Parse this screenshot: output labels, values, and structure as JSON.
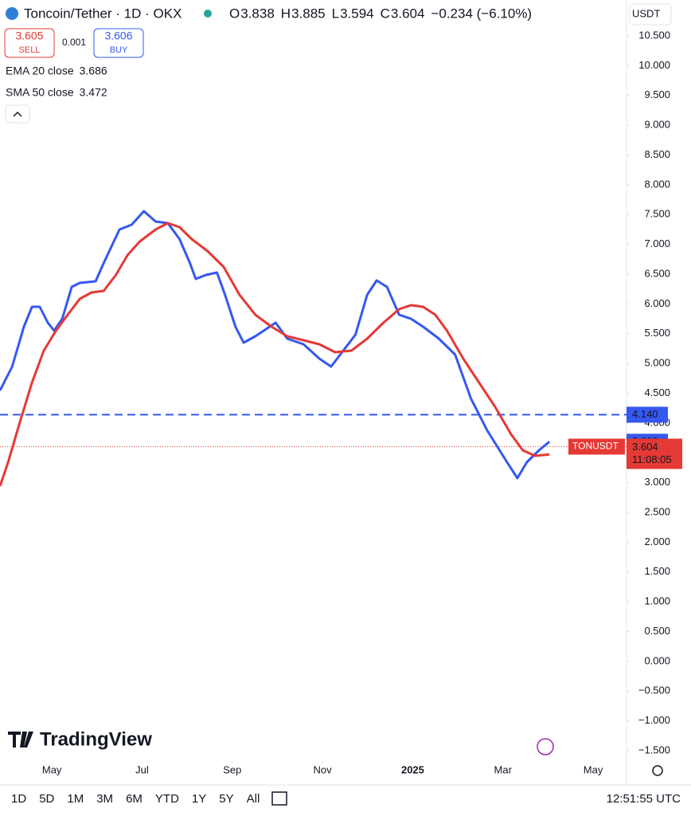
{
  "header": {
    "symbol": "Toncoin/Tether · 1D · OKX",
    "ohlc": [
      {
        "key": "O",
        "value": "3.838"
      },
      {
        "key": "H",
        "value": "3.885"
      },
      {
        "key": "L",
        "value": "3.594"
      },
      {
        "key": "C",
        "value": "3.604"
      }
    ],
    "change": "−0.234 (−6.10%)",
    "currency": "USDT",
    "sell": {
      "price": "3.605",
      "label": "SELL"
    },
    "spread": "0.001",
    "buy": {
      "price": "3.606",
      "label": "BUY"
    }
  },
  "chart_data": {
    "type": "line",
    "series": [
      {
        "name": "EMA 20 close",
        "color": "#3558f0",
        "last": "3.686",
        "x": [
          3.85,
          4.12,
          4.38,
          4.56,
          4.73,
          4.91,
          5.05,
          5.23,
          5.44,
          5.62,
          5.97,
          6.15,
          6.5,
          6.77,
          7.04,
          7.3,
          7.57,
          7.83,
          8.06,
          8.19,
          8.42,
          8.66,
          8.84,
          9.07,
          9.25,
          9.51,
          9.96,
          10.22,
          10.58,
          10.93,
          11.19,
          11.46,
          11.73,
          11.99,
          12.2,
          12.43,
          12.7,
          12.96,
          13.23,
          13.58,
          13.94,
          14.29,
          14.65,
          15.09,
          15.32,
          15.53,
          15.8,
          16.03
        ],
        "values": [
          4.547,
          4.948,
          5.617,
          5.952,
          5.952,
          5.684,
          5.55,
          5.751,
          6.286,
          6.353,
          6.38,
          6.687,
          7.249,
          7.329,
          7.557,
          7.383,
          7.356,
          7.089,
          6.687,
          6.42,
          6.487,
          6.527,
          6.152,
          5.617,
          5.349,
          5.456,
          5.684,
          5.416,
          5.323,
          5.082,
          4.948,
          5.216,
          5.483,
          6.152,
          6.393,
          6.286,
          5.818,
          5.751,
          5.617,
          5.416,
          5.149,
          4.413,
          3.878,
          3.343,
          3.075,
          3.343,
          3.543,
          3.686
        ]
      },
      {
        "name": "SMA 50 close",
        "color": "#e53935",
        "last": "3.472",
        "x": [
          3.85,
          4.03,
          4.29,
          4.56,
          4.82,
          5.09,
          5.35,
          5.62,
          5.88,
          6.15,
          6.42,
          6.68,
          6.95,
          7.3,
          7.57,
          7.83,
          8.1,
          8.45,
          8.81,
          9.16,
          9.51,
          9.87,
          10.22,
          10.58,
          10.93,
          11.28,
          11.64,
          11.99,
          12.35,
          12.7,
          12.96,
          13.23,
          13.5,
          13.76,
          14.12,
          14.47,
          14.82,
          15.18,
          15.44,
          15.71,
          16.03
        ],
        "values": [
          2.941,
          3.343,
          4.011,
          4.681,
          5.216,
          5.55,
          5.818,
          6.085,
          6.192,
          6.219,
          6.487,
          6.821,
          7.048,
          7.249,
          7.356,
          7.289,
          7.089,
          6.888,
          6.62,
          6.152,
          5.818,
          5.617,
          5.456,
          5.39,
          5.323,
          5.189,
          5.216,
          5.416,
          5.684,
          5.911,
          5.978,
          5.952,
          5.818,
          5.55,
          5.082,
          4.681,
          4.279,
          3.811,
          3.543,
          3.45,
          3.472
        ]
      }
    ],
    "xlim": [
      3.85,
      17.74
    ],
    "xticks": [
      {
        "value": 5,
        "label": "May"
      },
      {
        "value": 7,
        "label": "Jul"
      },
      {
        "value": 9,
        "label": "Sep"
      },
      {
        "value": 11,
        "label": "Nov"
      },
      {
        "value": 13,
        "label": "2025"
      },
      {
        "value": 15,
        "label": "Mar"
      },
      {
        "value": 17,
        "label": "May"
      }
    ],
    "ylim": [
      -1.674,
      11.102
    ],
    "yticks": [
      {
        "value": 10.5,
        "label": "10.500"
      },
      {
        "value": 10,
        "label": "10.000"
      },
      {
        "value": 9.5,
        "label": "9.500"
      },
      {
        "value": 9,
        "label": "9.000"
      },
      {
        "value": 8.5,
        "label": "8.500"
      },
      {
        "value": 8,
        "label": "8.000"
      },
      {
        "value": 7.5,
        "label": "7.500"
      },
      {
        "value": 7,
        "label": "7.000"
      },
      {
        "value": 6.5,
        "label": "6.500"
      },
      {
        "value": 6,
        "label": "6.000"
      },
      {
        "value": 5.5,
        "label": "5.500"
      },
      {
        "value": 5,
        "label": "5.000"
      },
      {
        "value": 4.5,
        "label": "4.500"
      },
      {
        "value": 4,
        "label": "4.000"
      },
      {
        "value": 3.5,
        "label": "3.500"
      },
      {
        "value": 3,
        "label": "3.000"
      },
      {
        "value": 2.5,
        "label": "2.500"
      },
      {
        "value": 2,
        "label": "2.000"
      },
      {
        "value": 1.5,
        "label": "1.500"
      },
      {
        "value": 1,
        "label": "1.000"
      },
      {
        "value": 0.5,
        "label": "0.500"
      },
      {
        "value": 0,
        "label": "0.000"
      },
      {
        "value": -0.5,
        "label": "−0.500"
      },
      {
        "value": -1,
        "label": "−1.000"
      },
      {
        "value": -1.5,
        "label": "−1.500"
      }
    ],
    "hline": {
      "value": 4.14,
      "label": "4.140",
      "color": "#3558f0"
    },
    "price": {
      "value": 3.604,
      "label": "3.604",
      "symbol": "TONUSDT",
      "countdown": "11:08:05",
      "color": "#e53935"
    }
  },
  "toolbar": {
    "ranges": [
      "1D",
      "5D",
      "1M",
      "3M",
      "6M",
      "YTD",
      "1Y",
      "5Y",
      "All"
    ],
    "time": "12:51:55 UTC"
  },
  "brand": "TradingView"
}
